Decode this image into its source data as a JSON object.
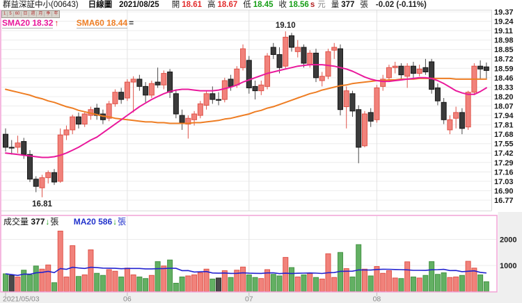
{
  "header": {
    "symbol": "群益深証中小(00643)",
    "chart_type": "日線圖",
    "date": "2021/08/25",
    "open_label": "開",
    "open_value": "18.61",
    "high_label": "高",
    "high_value": "18.67",
    "low_label": "低",
    "low_value": "18.45",
    "close_label": "收",
    "close_value": "18.56",
    "close_flag": "s",
    "unit_label": "元",
    "volume_label": "量",
    "volume_value": "377",
    "volume_unit": "張",
    "change_text": "-0.02 (-0.11%)"
  },
  "period_toolbar": {
    "items": [
      "1",
      "5",
      "60",
      "日",
      "週",
      "月",
      "季",
      "年"
    ]
  },
  "legend": {
    "sma20_label": "SMA20",
    "sma20_value": "18.32",
    "sma20_trend": "↑",
    "sma60_label": "SMA60",
    "sma60_value": "18.44",
    "sma60_trend": "="
  },
  "volume_panel": {
    "label": "成交量",
    "value": "377",
    "trend": "↓",
    "unit": "張",
    "ma_label": "MA20",
    "ma_value": "586",
    "ma_trend": "↓",
    "ma_unit": "張"
  },
  "colors": {
    "up": "#f1827b",
    "up_stroke": "#df5349",
    "down": "#3b3b3b",
    "down_stroke": "#161616",
    "down_wick": "#4a4a4a",
    "vol_down": "#63b063",
    "vol_down_stroke": "#459345",
    "vol_flat": "#4a4a4a",
    "vol_flat_stroke": "#2a2a2a",
    "sma20": "#e9189b",
    "sma60": "#ee7d23",
    "vol_ma": "#2222cf",
    "grid": "#ececec",
    "grid2": "#e2e2e2",
    "frame_gray": "#d9d9d9",
    "frame_pink": "#f2a2d6",
    "axis_text": "#1b1b1b",
    "x_text": "#8a8a8a",
    "header_red": "#e22c2c",
    "header_green": "#169e16"
  },
  "chart_data": {
    "type": "candlestick",
    "title": "群益深証中小(00643) 日線圖 2021/08/25",
    "price_ticks": [
      "19.37",
      "19.24",
      "19.11",
      "18.98",
      "18.85",
      "18.72",
      "18.59",
      "18.46",
      "18.33",
      "18.20",
      "18.07",
      "17.94",
      "17.81",
      "17.68",
      "17.55",
      "17.42",
      "17.29",
      "17.16",
      "17.03",
      "16.90",
      "16.77"
    ],
    "vol_ticks": [
      {
        "label": "2000",
        "value": 2000
      },
      {
        "label": "1000",
        "value": 1000
      }
    ],
    "x_ticks": [
      {
        "label": "2021/05/03",
        "index": 0,
        "align": "left"
      },
      {
        "label": "06",
        "index": 20
      },
      {
        "label": "07",
        "index": 40
      },
      {
        "label": "08",
        "index": 61
      }
    ],
    "annotations": {
      "high_label": {
        "text": "19.10",
        "index": 46,
        "value": 19.1
      },
      "low_label": {
        "text": "16.81",
        "index": 6,
        "value": 16.81
      }
    },
    "series_format": [
      "open",
      "high",
      "low",
      "close",
      "volume"
    ],
    "candles": [
      [
        17.68,
        17.76,
        17.44,
        17.5,
        680
      ],
      [
        17.5,
        17.6,
        17.4,
        17.5,
        620
      ],
      [
        17.5,
        17.66,
        17.42,
        17.56,
        560
      ],
      [
        17.58,
        17.63,
        17.34,
        17.4,
        820
      ],
      [
        17.4,
        17.46,
        17.02,
        17.06,
        640
      ],
      [
        17.06,
        17.1,
        16.88,
        16.96,
        980
      ],
      [
        16.94,
        17.12,
        16.81,
        17.08,
        860
      ],
      [
        17.08,
        17.18,
        17.0,
        17.15,
        1020
      ],
      [
        17.15,
        17.2,
        16.98,
        17.02,
        340
      ],
      [
        17.03,
        17.76,
        17.01,
        17.67,
        2320
      ],
      [
        17.67,
        17.8,
        17.6,
        17.74,
        560
      ],
      [
        17.74,
        17.95,
        17.68,
        17.92,
        1760
      ],
      [
        17.92,
        17.98,
        17.76,
        17.82,
        580
      ],
      [
        17.82,
        17.98,
        17.78,
        17.96,
        640
      ],
      [
        17.94,
        18.06,
        17.88,
        18.02,
        1600
      ],
      [
        18.04,
        18.1,
        17.88,
        17.94,
        700
      ],
      [
        17.96,
        18.02,
        17.82,
        17.88,
        620
      ],
      [
        17.9,
        18.14,
        17.86,
        18.1,
        840
      ],
      [
        18.1,
        18.3,
        18.06,
        18.26,
        780
      ],
      [
        18.26,
        18.32,
        18.1,
        18.16,
        560
      ],
      [
        18.18,
        18.44,
        18.14,
        18.4,
        900
      ],
      [
        18.4,
        18.48,
        17.98,
        18.44,
        640
      ],
      [
        18.44,
        18.5,
        18.28,
        18.34,
        560
      ],
      [
        18.34,
        18.4,
        18.12,
        18.22,
        500
      ],
      [
        18.22,
        18.42,
        18.18,
        18.38,
        620
      ],
      [
        18.4,
        18.6,
        18.32,
        18.36,
        1150
      ],
      [
        18.36,
        18.56,
        18.3,
        18.52,
        980
      ],
      [
        18.54,
        18.58,
        18.18,
        18.26,
        1210
      ],
      [
        18.24,
        18.3,
        17.9,
        17.96,
        320
      ],
      [
        17.94,
        18.02,
        17.74,
        17.84,
        560
      ],
      [
        17.82,
        17.94,
        17.62,
        17.9,
        600
      ],
      [
        17.88,
        18.0,
        17.8,
        17.96,
        640
      ],
      [
        17.94,
        18.14,
        17.9,
        18.1,
        720
      ],
      [
        18.08,
        18.28,
        18.02,
        18.24,
        860
      ],
      [
        18.24,
        18.34,
        18.1,
        18.16,
        480
      ],
      [
        18.16,
        18.26,
        18.08,
        18.16,
        520
      ],
      [
        18.16,
        18.46,
        18.12,
        18.42,
        800
      ],
      [
        18.44,
        18.5,
        18.28,
        18.34,
        540
      ],
      [
        18.36,
        18.62,
        18.32,
        18.58,
        820
      ],
      [
        18.6,
        18.92,
        18.56,
        18.86,
        940
      ],
      [
        18.7,
        18.76,
        18.24,
        18.32,
        640
      ],
      [
        18.34,
        18.42,
        18.16,
        18.28,
        540
      ],
      [
        18.28,
        18.42,
        18.22,
        18.36,
        500
      ],
      [
        18.34,
        18.8,
        18.3,
        18.76,
        840
      ],
      [
        18.88,
        18.94,
        18.72,
        18.78,
        660
      ],
      [
        18.78,
        18.88,
        18.52,
        18.6,
        600
      ],
      [
        18.62,
        19.1,
        18.58,
        19.02,
        1310
      ],
      [
        19.04,
        19.08,
        18.82,
        18.88,
        920
      ],
      [
        18.82,
        18.98,
        18.74,
        18.88,
        560
      ],
      [
        18.88,
        18.92,
        18.6,
        18.66,
        640
      ],
      [
        18.64,
        18.84,
        18.6,
        18.8,
        700
      ],
      [
        18.8,
        18.86,
        18.4,
        18.46,
        540
      ],
      [
        18.42,
        18.54,
        18.34,
        18.48,
        480
      ],
      [
        18.48,
        18.86,
        18.44,
        18.82,
        1450
      ],
      [
        18.84,
        18.94,
        18.72,
        18.88,
        540
      ],
      [
        18.86,
        18.92,
        17.94,
        18.02,
        1500
      ],
      [
        18.06,
        18.34,
        17.76,
        18.28,
        880
      ],
      [
        18.24,
        18.28,
        17.92,
        18.0,
        560
      ],
      [
        18.02,
        18.08,
        17.28,
        17.5,
        1800
      ],
      [
        17.52,
        18.0,
        17.5,
        17.96,
        860
      ],
      [
        17.98,
        18.04,
        17.78,
        17.86,
        600
      ],
      [
        17.88,
        18.36,
        17.84,
        18.32,
        960
      ],
      [
        18.34,
        18.5,
        18.28,
        18.44,
        700
      ],
      [
        18.46,
        18.64,
        18.4,
        18.6,
        800
      ],
      [
        18.6,
        18.68,
        18.52,
        18.62,
        520
      ],
      [
        18.62,
        18.66,
        18.44,
        18.5,
        500
      ],
      [
        18.48,
        18.66,
        18.32,
        18.62,
        1140
      ],
      [
        18.62,
        18.68,
        18.46,
        18.52,
        560
      ],
      [
        18.52,
        18.64,
        18.48,
        18.58,
        520
      ],
      [
        18.6,
        18.72,
        18.5,
        18.54,
        620
      ],
      [
        18.68,
        18.72,
        18.24,
        18.3,
        1150
      ],
      [
        18.32,
        18.38,
        18.08,
        18.14,
        660
      ],
      [
        18.12,
        18.18,
        17.82,
        17.88,
        720
      ],
      [
        17.74,
        17.94,
        17.68,
        17.88,
        540
      ],
      [
        17.9,
        18.06,
        17.76,
        17.98,
        560
      ],
      [
        17.98,
        18.04,
        17.68,
        17.76,
        620
      ],
      [
        17.78,
        18.28,
        17.74,
        18.26,
        1160
      ],
      [
        18.26,
        18.66,
        18.22,
        18.62,
        900
      ],
      [
        18.62,
        18.7,
        18.44,
        18.58,
        640
      ],
      [
        18.61,
        18.67,
        18.45,
        18.56,
        377
      ]
    ],
    "sma20": [
      17.42,
      17.41,
      17.4,
      17.39,
      17.38,
      17.37,
      17.36,
      17.36,
      17.37,
      17.39,
      17.42,
      17.46,
      17.5,
      17.55,
      17.6,
      17.64,
      17.7,
      17.76,
      17.82,
      17.88,
      17.94,
      18.0,
      18.06,
      18.11,
      18.16,
      18.2,
      18.24,
      18.27,
      18.29,
      18.3,
      18.3,
      18.29,
      18.28,
      18.28,
      18.28,
      18.29,
      18.31,
      18.33,
      18.36,
      18.4,
      18.43,
      18.46,
      18.49,
      18.52,
      18.54,
      18.56,
      18.58,
      18.6,
      18.62,
      18.63,
      18.64,
      18.64,
      18.64,
      18.63,
      18.62,
      18.6,
      18.58,
      18.55,
      18.51,
      18.47,
      18.44,
      18.42,
      18.41,
      18.41,
      18.42,
      18.43,
      18.44,
      18.45,
      18.46,
      18.46,
      18.45,
      18.42,
      18.38,
      18.33,
      18.28,
      18.25,
      18.23,
      18.23,
      18.27,
      18.32
    ],
    "sma60": [
      18.3,
      18.28,
      18.26,
      18.24,
      18.22,
      18.19,
      18.17,
      18.14,
      18.12,
      18.09,
      18.06,
      18.04,
      18.01,
      17.99,
      17.97,
      17.95,
      17.93,
      17.92,
      17.9,
      17.89,
      17.88,
      17.87,
      17.86,
      17.85,
      17.85,
      17.84,
      17.84,
      17.83,
      17.83,
      17.83,
      17.83,
      17.84,
      17.84,
      17.85,
      17.86,
      17.87,
      17.89,
      17.9,
      17.92,
      17.94,
      17.96,
      17.99,
      18.01,
      18.04,
      18.06,
      18.09,
      18.12,
      18.15,
      18.18,
      18.21,
      18.24,
      18.26,
      18.29,
      18.31,
      18.33,
      18.35,
      18.36,
      18.38,
      18.39,
      18.4,
      18.41,
      18.42,
      18.42,
      18.43,
      18.43,
      18.44,
      18.44,
      18.44,
      18.45,
      18.45,
      18.45,
      18.45,
      18.45,
      18.45,
      18.44,
      18.44,
      18.44,
      18.44,
      18.44,
      18.44
    ]
  }
}
